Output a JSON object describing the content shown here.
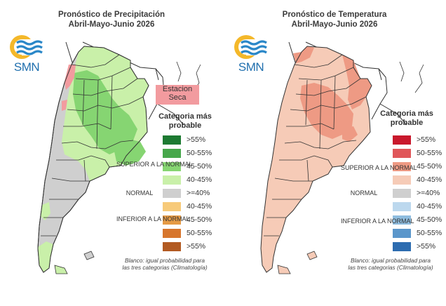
{
  "precip": {
    "title_line1": "Pronóstico de Precipitación",
    "title_line2": "Abril-Mayo-Junio 2026",
    "logo_text": "SMN",
    "category_title": "Categoria más probable",
    "dry_station_label": "Estacion Seca",
    "group_superior": "SUPERIOR A LA NORMAL",
    "group_normal": "NORMAL",
    "group_inferior": "INFERIOR A LA NORMAL",
    "legend": [
      {
        "label": ">55%",
        "color": "#1d7a32"
      },
      {
        "label": "50-55%",
        "color": "#47a74b"
      },
      {
        "label": "45-50%",
        "color": "#86d572"
      },
      {
        "label": "40-45%",
        "color": "#c9f0a9"
      },
      {
        "label": ">=40%",
        "color": "#cfcfcf"
      },
      {
        "label": "40-45%",
        "color": "#f7ca79"
      },
      {
        "label": "45-50%",
        "color": "#e59a45"
      },
      {
        "label": "50-55%",
        "color": "#d7762d"
      },
      {
        "label": ">55%",
        "color": "#b25a22"
      }
    ],
    "footnote_line1": "Blanco: igual probabilidad para",
    "footnote_line2": "las tres categorias (Climatología)"
  },
  "temp": {
    "title_line1": "Pronóstico de Temperatura",
    "title_line2": "Abril-Mayo-Junio 2026",
    "logo_text": "SMN",
    "category_title": "Categoria más probable",
    "group_superior": "SUPERIOR A LA NORMAL",
    "group_normal": "NORMAL",
    "group_inferior": "INFERIOR A LA NORMAL",
    "legend": [
      {
        "label": ">55%",
        "color": "#c9182c"
      },
      {
        "label": "50-55%",
        "color": "#e0575a"
      },
      {
        "label": "45-50%",
        "color": "#ee9a84"
      },
      {
        "label": "40-45%",
        "color": "#f6cbb7"
      },
      {
        "label": ">=40%",
        "color": "#cfcfcf"
      },
      {
        "label": "40-45%",
        "color": "#bcd8ee"
      },
      {
        "label": "45-50%",
        "color": "#8fbddf"
      },
      {
        "label": "50-55%",
        "color": "#5b97cb"
      },
      {
        "label": ">55%",
        "color": "#2d6cb0"
      }
    ],
    "footnote_line1": "Blanco: igual probabilidad para",
    "footnote_line2": "las tres categorias (Climatología)"
  },
  "map_colors": {
    "outline": "#333333",
    "precip_green_light": "#c9f0a9",
    "precip_green_mid": "#86d572",
    "precip_gray": "#cfcfcf",
    "precip_dry": "#f29b9f",
    "temp_light": "#f6cbb7",
    "temp_mid": "#ee9a84",
    "temp_strong": "#e0575a"
  }
}
